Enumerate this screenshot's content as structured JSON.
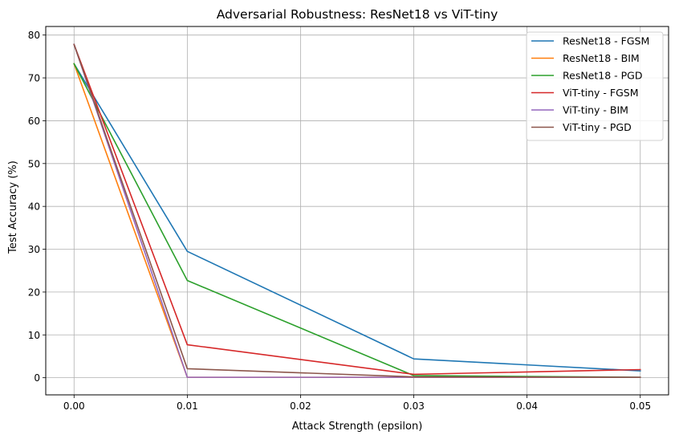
{
  "chart_data": {
    "type": "line",
    "title": "Adversarial Robustness: ResNet18 vs ViT-tiny",
    "xlabel": "Attack Strength (epsilon)",
    "ylabel": "Test Accuracy (%)",
    "x": [
      0.0,
      0.01,
      0.03,
      0.05
    ],
    "xlim": [
      -0.0025,
      0.0525
    ],
    "ylim": [
      -4,
      82
    ],
    "xticks": [
      0.0,
      0.01,
      0.02,
      0.03,
      0.04,
      0.05
    ],
    "xtick_labels": [
      "0.00",
      "0.01",
      "0.02",
      "0.03",
      "0.04",
      "0.05"
    ],
    "yticks": [
      0,
      10,
      20,
      30,
      40,
      50,
      60,
      70,
      80
    ],
    "ytick_labels": [
      "0",
      "10",
      "20",
      "30",
      "40",
      "50",
      "60",
      "70",
      "80"
    ],
    "grid": true,
    "legend_position": "top-right",
    "series": [
      {
        "name": "ResNet18 - FGSM",
        "color": "#1f77b4",
        "values": [
          73.3,
          29.5,
          4.4,
          1.6
        ]
      },
      {
        "name": "ResNet18 - BIM",
        "color": "#ff7f0e",
        "values": [
          73.3,
          0.1,
          0.1,
          0.1
        ]
      },
      {
        "name": "ResNet18 - PGD",
        "color": "#2ca02c",
        "values": [
          73.3,
          22.7,
          0.5,
          0.1
        ]
      },
      {
        "name": "ViT-tiny - FGSM",
        "color": "#d62728",
        "values": [
          77.8,
          7.7,
          0.8,
          1.9
        ]
      },
      {
        "name": "ViT-tiny - BIM",
        "color": "#9467bd",
        "values": [
          77.8,
          0.1,
          0.1,
          0.1
        ]
      },
      {
        "name": "ViT-tiny - PGD",
        "color": "#8c564b",
        "values": [
          77.8,
          2.1,
          0.2,
          0.1
        ]
      }
    ]
  }
}
